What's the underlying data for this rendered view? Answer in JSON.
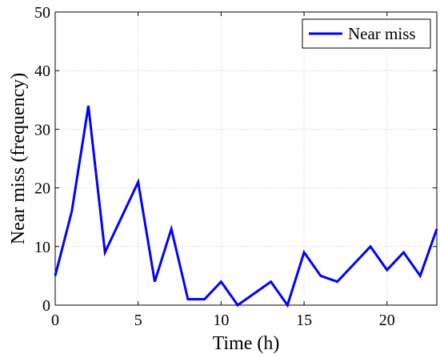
{
  "chart_data": {
    "type": "line",
    "xlabel": "Time (h)",
    "ylabel": "Near miss (frequency)",
    "xlim": [
      0,
      23
    ],
    "ylim": [
      0,
      50
    ],
    "xticks": [
      0,
      5,
      10,
      15,
      20
    ],
    "yticks": [
      0,
      10,
      20,
      30,
      40,
      50
    ],
    "grid": true,
    "legend_position": "top-right",
    "series": [
      {
        "name": "Near miss",
        "color": "#0000ff",
        "x": [
          0,
          1,
          2,
          3,
          4,
          5,
          6,
          7,
          8,
          9,
          10,
          11,
          12,
          13,
          14,
          15,
          16,
          17,
          18,
          19,
          20,
          21,
          22,
          23
        ],
        "y": [
          5,
          16,
          34,
          9,
          15,
          21,
          4,
          13,
          1,
          1,
          4,
          0,
          2,
          4,
          0,
          9,
          5,
          4,
          7,
          10,
          6,
          9,
          5,
          13
        ]
      }
    ]
  }
}
